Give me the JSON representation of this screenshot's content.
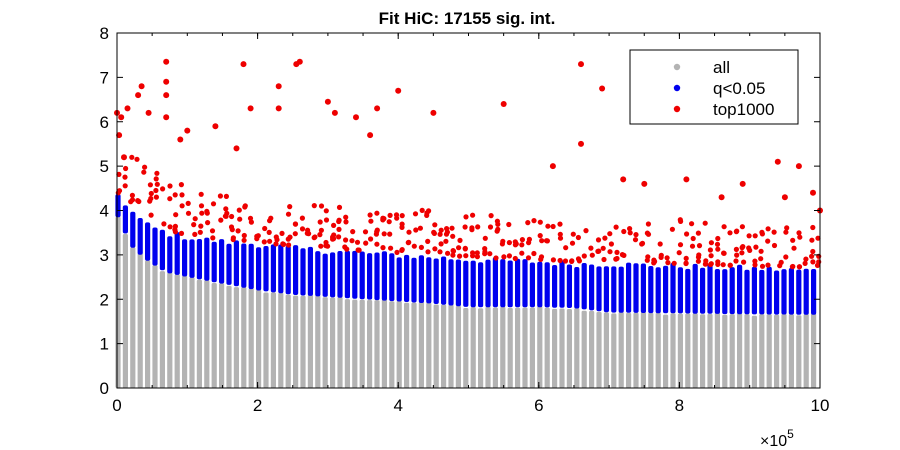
{
  "chart_data": {
    "type": "scatter",
    "title": "Fit HiC: 17155 sig. int.",
    "xlabel": "",
    "ylabel": "",
    "x_multiplier_label": "×10",
    "x_multiplier_exponent": "5",
    "xlim": [
      0,
      10
    ],
    "ylim": [
      0,
      8
    ],
    "x_ticks": [
      "0",
      "2",
      "4",
      "6",
      "8",
      "10"
    ],
    "y_ticks": [
      "0",
      "1",
      "2",
      "3",
      "4",
      "5",
      "6",
      "7",
      "8"
    ],
    "grid": false,
    "legend_position": "top-right",
    "series": [
      {
        "name": "all",
        "color": "#b3b3b3",
        "description_of_values": "dense columns of points from 0 up to the per-distance significance threshold",
        "upper_envelope": {
          "x": [
            0.0,
            0.2,
            0.4,
            0.7,
            1.0,
            1.5,
            2.0,
            2.5,
            3.0,
            4.0,
            4.5,
            5.0,
            6.0,
            6.5,
            7.0,
            8.0,
            9.0,
            10.0
          ],
          "y": [
            3.9,
            3.2,
            2.9,
            2.6,
            2.5,
            2.35,
            2.2,
            2.1,
            2.05,
            1.95,
            1.9,
            1.82,
            1.82,
            1.8,
            1.7,
            1.68,
            1.66,
            1.65
          ]
        }
      },
      {
        "name": "q<0.05",
        "color": "#0000ee",
        "upper_envelope": {
          "x": [
            0.0,
            0.2,
            0.4,
            0.7,
            1.0,
            1.5,
            2.0,
            2.5,
            3.0,
            4.0,
            4.5,
            5.0,
            6.0,
            6.5,
            7.0,
            8.0,
            9.0,
            10.0
          ],
          "y": [
            4.4,
            4.0,
            3.7,
            3.5,
            3.4,
            3.3,
            3.25,
            3.15,
            3.1,
            3.0,
            2.95,
            2.9,
            2.85,
            2.8,
            2.8,
            2.75,
            2.7,
            2.65
          ]
        }
      },
      {
        "name": "top1000",
        "color": "#ee0000",
        "points": {
          "x": [
            0.0,
            0.03,
            0.06,
            0.1,
            0.15,
            0.3,
            0.35,
            0.45,
            0.7,
            0.7,
            0.7,
            0.7,
            0.9,
            1.0,
            1.4,
            1.7,
            1.8,
            1.9,
            2.3,
            2.3,
            2.55,
            2.6,
            3.0,
            3.1,
            3.4,
            3.6,
            3.7,
            4.0,
            4.5,
            5.5,
            6.2,
            6.6,
            6.6,
            6.9,
            7.2,
            7.5,
            8.1,
            8.6,
            8.9,
            9.4,
            9.5,
            9.7,
            9.9,
            10.0
          ],
          "y": [
            6.2,
            5.7,
            6.1,
            5.2,
            6.3,
            6.6,
            6.8,
            6.2,
            7.35,
            6.9,
            6.6,
            6.1,
            5.6,
            5.8,
            5.9,
            5.4,
            7.3,
            6.3,
            6.8,
            6.3,
            7.3,
            7.35,
            6.45,
            6.2,
            6.1,
            5.7,
            6.3,
            6.7,
            6.2,
            6.4,
            5.0,
            7.3,
            5.5,
            6.75,
            4.7,
            4.6,
            4.7,
            4.3,
            4.6,
            5.1,
            4.3,
            5.0,
            4.4,
            4.0
          ],
          "floor_envelope": {
            "x": [
              0.0,
              0.2,
              0.4,
              0.7,
              1.0,
              1.5,
              2.0,
              2.5,
              3.0,
              4.0,
              4.5,
              5.0,
              6.0,
              6.5,
              7.0,
              8.0,
              9.0,
              10.0
            ],
            "y": [
              4.4,
              4.0,
              3.7,
              3.5,
              3.4,
              3.3,
              3.25,
              3.15,
              3.1,
              3.0,
              2.95,
              2.9,
              2.85,
              2.8,
              2.8,
              2.75,
              2.7,
              2.65
            ]
          }
        }
      }
    ]
  }
}
